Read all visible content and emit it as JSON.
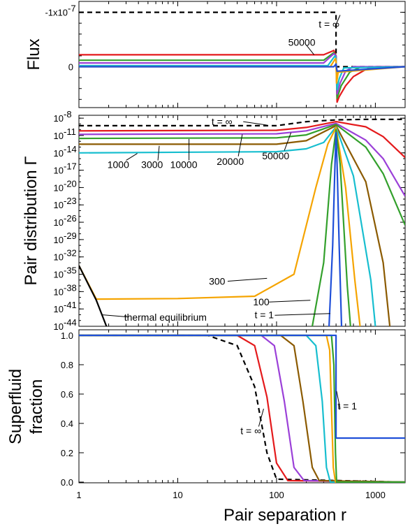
{
  "chart_data": [
    {
      "type": "line",
      "panel": "flux",
      "ylabel": "Flux",
      "x_scale": "log",
      "xlim": [
        1,
        2000
      ],
      "yticks": [
        {
          "value": -1e-07,
          "label": "-1x10"
        },
        {
          "value": 0,
          "label": "0"
        }
      ],
      "ytick_exponent": "-7",
      "series": [
        {
          "color": "#000000",
          "dashed": true,
          "x": [
            1,
            400,
            400,
            2000
          ],
          "y": [
            -1e-07,
            -1e-07,
            0,
            0
          ]
        },
        {
          "color": "#e41a1c",
          "x": [
            1,
            300,
            380,
            400,
            410,
            430,
            500,
            600,
            800,
            1000,
            2000
          ],
          "y": [
            -2.2e-08,
            -2.2e-08,
            -3e-08,
            -2e-08,
            6.5e-08,
            5.5e-08,
            3.5e-08,
            1.8e-08,
            5e-09,
            0,
            0
          ]
        },
        {
          "color": "#33a02c",
          "x": [
            1,
            300,
            380,
            400,
            410,
            450,
            550,
            700,
            2000
          ],
          "y": [
            -1.2e-08,
            -1.2e-08,
            -2.6e-08,
            -2e-08,
            5.8e-08,
            3.5e-08,
            1e-08,
            1e-09,
            0
          ]
        },
        {
          "color": "#9b40d8",
          "x": [
            1,
            300,
            380,
            400,
            410,
            440,
            500,
            600,
            2000
          ],
          "y": [
            -7e-09,
            -7e-09,
            -2.4e-08,
            -2e-08,
            5e-08,
            3e-08,
            8e-09,
            0,
            0
          ]
        },
        {
          "color": "#17becf",
          "x": [
            1,
            330,
            390,
            400,
            410,
            430,
            480,
            2000
          ],
          "y": [
            -2e-09,
            -2e-09,
            -2e-08,
            -1.5e-08,
            4.2e-08,
            2.2e-08,
            2e-09,
            0
          ]
        },
        {
          "color": "#f5a400",
          "x": [
            1,
            350,
            395,
            400,
            405,
            420,
            2000
          ],
          "y": [
            0,
            0,
            -1.5e-08,
            -1e-08,
            3e-08,
            1e-08,
            0
          ]
        },
        {
          "color": "#1f4fd8",
          "x": [
            1,
            380,
            400,
            410,
            2000
          ],
          "y": [
            0,
            0,
            -5e-09,
            8e-09,
            0
          ]
        }
      ],
      "annotations": [
        {
          "text": "50000",
          "x": 180,
          "y": -4.5e-08
        },
        {
          "text": "t = ∞",
          "x": 340,
          "y": -7.8e-08
        }
      ]
    },
    {
      "type": "line",
      "panel": "pair-distribution",
      "ylabel": "Pair distribution Γ",
      "x_scale": "log",
      "y_scale": "log",
      "xlim": [
        1,
        2000
      ],
      "ylim_exponents": [
        -44,
        -7.5
      ],
      "ytick_exponents": [
        -8,
        -11,
        -14,
        -17,
        -20,
        -23,
        -26,
        -29,
        -32,
        -35,
        -38,
        -41,
        -44
      ],
      "ytick_base": "10",
      "series": [
        {
          "color": "#000000",
          "dashed": true,
          "x": [
            1,
            100,
            200,
            400,
            800,
            2000
          ],
          "y_exp": [
            -9.3,
            -9.3,
            -8.6,
            -8.3,
            -8.2,
            -8.2
          ]
        },
        {
          "color": "#e41a1c",
          "x": [
            1,
            100,
            200,
            400,
            800,
            1200,
            2000
          ],
          "y_exp": [
            -10.2,
            -10.1,
            -9.6,
            -8.6,
            -9.5,
            -11.2,
            -14.8
          ]
        },
        {
          "color": "#9b40d8",
          "x": [
            1,
            100,
            200,
            400,
            800,
            1200,
            2000
          ],
          "y_exp": [
            -10.8,
            -10.7,
            -10.2,
            -8.9,
            -11.8,
            -15.0,
            -21.5
          ]
        },
        {
          "color": "#33a02c",
          "x": [
            1,
            100,
            200,
            400,
            800,
            1200,
            2000
          ],
          "y_exp": [
            -11.5,
            -11.4,
            -10.9,
            -9.1,
            -13.0,
            -17.6,
            -26.5
          ]
        },
        {
          "color": "#8b5a00",
          "x": [
            1,
            100,
            200,
            400,
            800,
            1200,
            1400
          ],
          "y_exp": [
            -12.5,
            -12.5,
            -11.9,
            -9.3,
            -19.0,
            -33.0,
            -44.0
          ]
        },
        {
          "color": "#17becf",
          "x": [
            1,
            100,
            200,
            300,
            400,
            600,
            900,
            1000
          ],
          "y_exp": [
            -14.0,
            -13.8,
            -13.3,
            -12.2,
            -9.5,
            -18.0,
            -36.0,
            -44.0
          ]
        },
        {
          "color": "#f5a400",
          "x": [
            1,
            1.5,
            10,
            60,
            150,
            250,
            330,
            400,
            500,
            620,
            700
          ],
          "y_exp": [
            -33.5,
            -39.3,
            -39.2,
            -38.8,
            -35.0,
            -20.0,
            -12.5,
            -9.6,
            -20.0,
            -36.0,
            -44.0
          ]
        },
        {
          "color": "#33a02c",
          "x": [
            230,
            300,
            360,
            400,
            440,
            520,
            560
          ],
          "y_exp": [
            -44.0,
            -33.0,
            -16.0,
            -10.0,
            -16.0,
            -37.0,
            -44.0
          ]
        },
        {
          "color": "#1f4fd8",
          "x": [
            340,
            370,
            390,
            400,
            410,
            430,
            455
          ],
          "y_exp": [
            -44.0,
            -30.0,
            -16.0,
            -10.5,
            -16.0,
            -30.0,
            -44.0
          ]
        },
        {
          "color": "#000000",
          "x": [
            1,
            1.5,
            1.9
          ],
          "y_exp": [
            -33.5,
            -39.5,
            -44.0
          ]
        }
      ],
      "annotations": [
        {
          "text": "t = ∞",
          "x": 28,
          "y_exp": -8.6
        },
        {
          "text": "1000",
          "x": 2.5,
          "y_exp": -16.0
        },
        {
          "text": "3000",
          "x": 5.5,
          "y_exp": -16.0
        },
        {
          "text": "10000",
          "x": 11.5,
          "y_exp": -16.0
        },
        {
          "text": "20000",
          "x": 34,
          "y_exp": -15.5
        },
        {
          "text": "50000",
          "x": 98,
          "y_exp": -14.5
        },
        {
          "text": "300",
          "x": 25,
          "y_exp": -36.2
        },
        {
          "text": "100",
          "x": 70,
          "y_exp": -39.8
        },
        {
          "text": "t = 1",
          "x": 75,
          "y_exp": -42.0
        },
        {
          "text": "thermal equilibrium",
          "x": 3.6,
          "y_exp": -42.4
        }
      ]
    },
    {
      "type": "line",
      "panel": "superfluid-fraction",
      "ylabel": [
        "Superfluid",
        "fraction"
      ],
      "xlabel": "Pair separation  r",
      "x_scale": "log",
      "xlim": [
        1,
        2000
      ],
      "ylim": [
        0,
        1.0
      ],
      "yticks": [
        "0.0",
        "0.2",
        "0.4",
        "0.6",
        "0.8",
        "1.0"
      ],
      "xticks": [
        {
          "value": 1,
          "label": "1"
        },
        {
          "value": 10,
          "label": "10"
        },
        {
          "value": 100,
          "label": "100"
        },
        {
          "value": 1000,
          "label": "1000"
        }
      ],
      "series": [
        {
          "color": "#000000",
          "dashed": true,
          "x": [
            1,
            20,
            40,
            60,
            80,
            100,
            2000
          ],
          "y": [
            1.0,
            1.0,
            0.93,
            0.65,
            0.2,
            0.02,
            0.0
          ]
        },
        {
          "color": "#e41a1c",
          "x": [
            1,
            40,
            60,
            80,
            100,
            130,
            2000
          ],
          "y": [
            1.0,
            1.0,
            0.93,
            0.58,
            0.13,
            0.01,
            0.0
          ]
        },
        {
          "color": "#9b40d8",
          "x": [
            1,
            70,
            95,
            120,
            150,
            190,
            2000
          ],
          "y": [
            1.0,
            1.0,
            0.93,
            0.55,
            0.1,
            0.01,
            0.0
          ]
        },
        {
          "color": "#8b5a00",
          "x": [
            1,
            110,
            150,
            185,
            230,
            270,
            2000
          ],
          "y": [
            1.0,
            1.0,
            0.93,
            0.55,
            0.1,
            0.01,
            0.0
          ]
        },
        {
          "color": "#17becf",
          "x": [
            1,
            200,
            250,
            290,
            320,
            350,
            2000
          ],
          "y": [
            1.0,
            1.0,
            0.93,
            0.55,
            0.1,
            0.0,
            0.0
          ]
        },
        {
          "color": "#f5a400",
          "x": [
            1,
            320,
            345,
            360,
            375,
            395,
            2000
          ],
          "y": [
            1.0,
            1.0,
            0.9,
            0.5,
            0.1,
            0.0,
            0.0
          ]
        },
        {
          "color": "#33a02c",
          "x": [
            1,
            360,
            380,
            395,
            405,
            2000
          ],
          "y": [
            1.0,
            1.0,
            0.8,
            0.2,
            0.0,
            0.0
          ]
        },
        {
          "color": "#1f4fd8",
          "x": [
            1,
            400,
            400,
            2000
          ],
          "y": [
            1.0,
            1.0,
            0.3,
            0.3
          ]
        }
      ],
      "annotations": [
        {
          "text": "t = ∞",
          "x": 55,
          "y": 0.35
        },
        {
          "text": "t = 1",
          "x": 520,
          "y": 0.52
        }
      ]
    }
  ]
}
